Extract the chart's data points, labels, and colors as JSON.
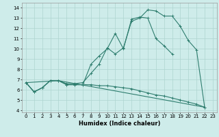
{
  "xlabel": "Humidex (Indice chaleur)",
  "xlim": [
    -0.5,
    23.5
  ],
  "ylim": [
    3.8,
    14.5
  ],
  "yticks": [
    4,
    5,
    6,
    7,
    8,
    9,
    10,
    11,
    12,
    13,
    14
  ],
  "xticks": [
    0,
    1,
    2,
    3,
    4,
    5,
    6,
    7,
    8,
    9,
    10,
    11,
    12,
    13,
    14,
    15,
    16,
    17,
    18,
    19,
    20,
    21,
    22,
    23
  ],
  "bg_color": "#ceecea",
  "grid_color": "#aed4d0",
  "line_color": "#2e7d6e",
  "line1_x": [
    0,
    1,
    2,
    3,
    4,
    5,
    6,
    7,
    8,
    9,
    10,
    11,
    12,
    13,
    14,
    15,
    16,
    17,
    18,
    19,
    20,
    21,
    22
  ],
  "line1_y": [
    6.7,
    5.8,
    6.2,
    6.9,
    6.9,
    6.6,
    6.6,
    6.7,
    7.6,
    8.5,
    10.1,
    9.5,
    10.1,
    12.7,
    13.0,
    13.8,
    13.7,
    13.2,
    13.2,
    12.2,
    10.8,
    9.9,
    4.3
  ],
  "line2_x": [
    0,
    1,
    2,
    3,
    4,
    5,
    6,
    7,
    8,
    9,
    10,
    11,
    12,
    13,
    14,
    15,
    16,
    17,
    18,
    19,
    20,
    21,
    22
  ],
  "line2_y": [
    6.7,
    5.8,
    6.2,
    6.9,
    6.9,
    6.5,
    6.5,
    6.5,
    8.5,
    9.3,
    10.0,
    11.5,
    10.0,
    12.9,
    13.1,
    13.0,
    11.0,
    10.3,
    9.5,
    null,
    null,
    null,
    null
  ],
  "line3_x": [
    0,
    4,
    22
  ],
  "line3_y": [
    6.7,
    6.9,
    4.3
  ],
  "line4_x": [
    0,
    1,
    2,
    3,
    4,
    5,
    6,
    7,
    8,
    9,
    10,
    11,
    12,
    13,
    14,
    15,
    16,
    17,
    18,
    19,
    20,
    21,
    22
  ],
  "line4_y": [
    6.7,
    5.8,
    6.2,
    6.9,
    6.9,
    6.5,
    6.5,
    6.5,
    6.5,
    6.4,
    6.4,
    6.3,
    6.2,
    6.1,
    5.9,
    5.7,
    5.5,
    5.4,
    5.2,
    5.0,
    4.8,
    4.6,
    4.3
  ]
}
